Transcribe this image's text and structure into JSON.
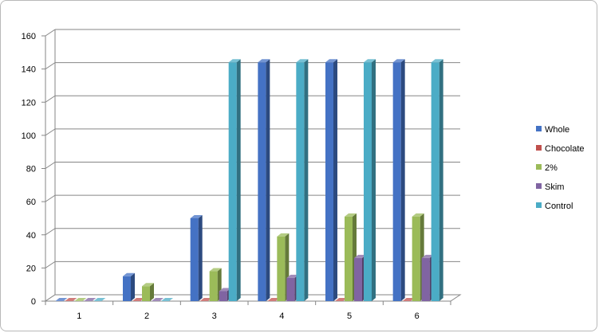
{
  "chart_data": {
    "type": "bar",
    "title": "",
    "xlabel": "",
    "ylabel": "",
    "categories": [
      "1",
      "2",
      "3",
      "4",
      "5",
      "6"
    ],
    "series": [
      {
        "name": "Whole",
        "color": "#4472C4",
        "values": [
          0,
          15,
          50,
          144,
          144,
          144
        ]
      },
      {
        "name": "Chocolate",
        "color": "#C0504D",
        "values": [
          0,
          0,
          0,
          0,
          0,
          0
        ]
      },
      {
        "name": "2%",
        "color": "#9BBB59",
        "values": [
          0,
          9,
          18,
          39,
          51,
          51
        ]
      },
      {
        "name": "Skim",
        "color": "#8064A2",
        "values": [
          0,
          0,
          6,
          14,
          26,
          26
        ]
      },
      {
        "name": "Control",
        "color": "#4BACC6",
        "values": [
          0,
          0,
          144,
          144,
          144,
          144
        ]
      }
    ],
    "ylim": [
      0,
      160
    ],
    "yticks": [
      "0",
      "20",
      "40",
      "60",
      "80",
      "100",
      "120",
      "140",
      "160"
    ],
    "grid": true,
    "legend_position": "right",
    "style": "3d-clustered-column"
  }
}
